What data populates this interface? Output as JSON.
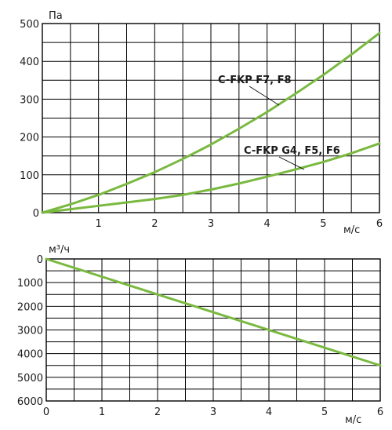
{
  "chart_data": [
    {
      "type": "line",
      "title": "",
      "ylabel": "Па",
      "xlabel": "м/с",
      "xlim": [
        0,
        6
      ],
      "ylim": [
        0,
        500
      ],
      "x_ticks": [
        "1",
        "2",
        "3",
        "4",
        "5",
        "6"
      ],
      "y_ticks": [
        "0",
        "100",
        "200",
        "300",
        "400",
        "500"
      ],
      "grid": true,
      "line_color": "#7ab940",
      "series": [
        {
          "name": "C-FKP F7, F8",
          "x": [
            0,
            0.5,
            1,
            1.5,
            2,
            2.5,
            3,
            3.5,
            4,
            4.5,
            5,
            5.5,
            6
          ],
          "values": [
            0,
            22,
            47,
            76,
            107,
            142,
            180,
            222,
            266,
            314,
            364,
            418,
            475
          ]
        },
        {
          "name": "C-FKP G4, F5, F6",
          "x": [
            0,
            0.5,
            1,
            1.5,
            2,
            2.5,
            3,
            3.5,
            4,
            4.5,
            5,
            5.5,
            6
          ],
          "values": [
            0,
            9,
            18,
            27,
            36,
            47,
            61,
            77,
            95,
            114,
            134,
            157,
            183
          ]
        }
      ]
    },
    {
      "type": "line",
      "title": "",
      "ylabel": "м³/ч",
      "xlabel": "м/с",
      "xlim": [
        0,
        6
      ],
      "ylim": [
        0,
        6000
      ],
      "y_inverted": true,
      "x_ticks": [
        "0",
        "1",
        "2",
        "3",
        "4",
        "5",
        "6"
      ],
      "y_ticks": [
        "0",
        "1000",
        "2000",
        "3000",
        "4000",
        "5000",
        "6000"
      ],
      "grid": true,
      "line_color": "#7ab940",
      "series": [
        {
          "x": [
            0,
            6
          ],
          "values": [
            0,
            4500
          ]
        }
      ]
    }
  ]
}
